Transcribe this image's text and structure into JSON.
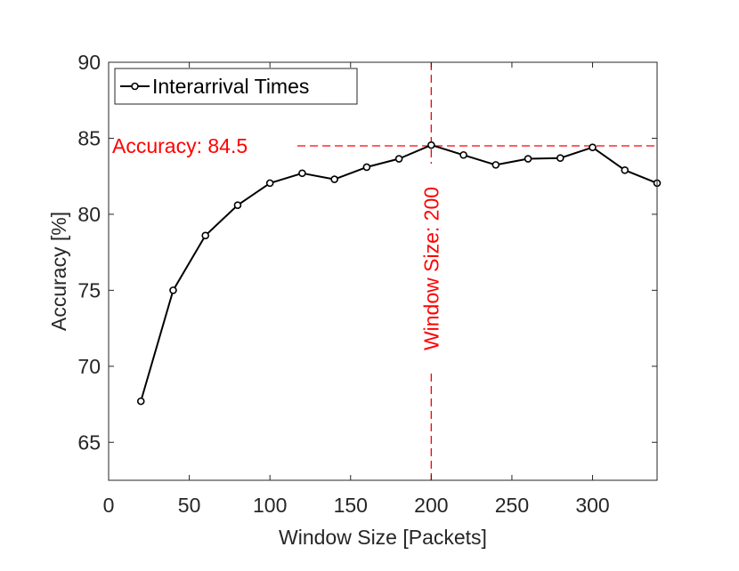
{
  "chart_data": {
    "type": "line",
    "xlabel": "Window Size [Packets]",
    "ylabel": "Accuracy [%]",
    "xlim": [
      0,
      340
    ],
    "ylim": [
      62.5,
      90
    ],
    "xticks": [
      "0",
      "50",
      "100",
      "150",
      "200",
      "250",
      "300"
    ],
    "xtick_values": [
      0,
      50,
      100,
      150,
      200,
      250,
      300
    ],
    "yticks": [
      "65",
      "70",
      "75",
      "80",
      "85",
      "90"
    ],
    "ytick_values": [
      65,
      70,
      75,
      80,
      85,
      90
    ],
    "grid": false,
    "legend_position": "top-left",
    "series": [
      {
        "name": "Interarrival Times",
        "color": "#000000",
        "marker": "circle",
        "x": [
          20,
          40,
          60,
          80,
          100,
          120,
          140,
          160,
          180,
          200,
          220,
          240,
          260,
          280,
          300,
          320,
          340
        ],
        "y": [
          67.7,
          75.0,
          78.6,
          80.6,
          82.05,
          82.7,
          82.3,
          83.1,
          83.65,
          84.55,
          83.9,
          83.25,
          83.65,
          83.7,
          84.4,
          82.9,
          82.05
        ]
      }
    ],
    "annotations": {
      "color": "#ff0000",
      "hline": {
        "y": 84.5,
        "label": "Accuracy: 84.5"
      },
      "vline": {
        "x": 200,
        "label": "Window Size: 200"
      }
    }
  }
}
